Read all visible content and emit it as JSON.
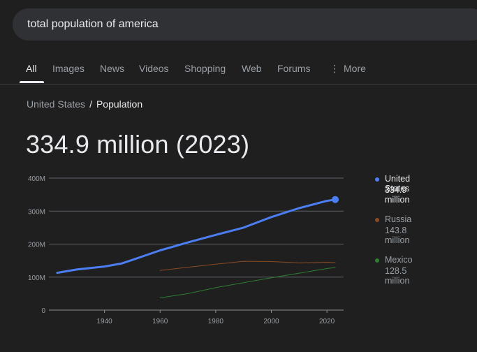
{
  "search": {
    "query": "total population of america"
  },
  "tabs": [
    "All",
    "Images",
    "News",
    "Videos",
    "Shopping",
    "Web",
    "Forums",
    "More"
  ],
  "more_icon_glyph": "⋮",
  "breadcrumb": {
    "parent": "United States",
    "separator": "/",
    "current": "Population"
  },
  "headline": "334.9 million (2023)",
  "legend": [
    {
      "name": "United States",
      "value": "334.9 million",
      "color": "#4c7ef3",
      "active": true
    },
    {
      "name": "Russia",
      "value": "143.8 million",
      "color": "#8a4b25",
      "active": false
    },
    {
      "name": "Mexico",
      "value": "128.5 million",
      "color": "#2e7d32",
      "active": false
    }
  ],
  "chart_data": {
    "type": "line",
    "y_ticks": [
      0,
      100,
      200,
      300,
      400
    ],
    "y_tick_labels": [
      "0",
      "100M",
      "200M",
      "300M",
      "400M"
    ],
    "x_ticks": [
      1940,
      1960,
      1980,
      2000,
      2020
    ],
    "xlim": [
      1920,
      2026
    ],
    "ylim": [
      0,
      400
    ],
    "grid": true,
    "series": [
      {
        "name": "United States",
        "color": "#4c7ef3",
        "x": [
          1923,
          1930,
          1940,
          1946,
          1950,
          1960,
          1970,
          1980,
          1990,
          2000,
          2010,
          2020,
          2023
        ],
        "y": [
          113,
          123,
          132,
          141,
          152,
          181,
          205,
          228,
          250,
          282,
          309,
          331,
          335
        ]
      },
      {
        "name": "Russia",
        "color": "#8a4b25",
        "x": [
          1960,
          1970,
          1980,
          1990,
          2000,
          2010,
          2020,
          2023
        ],
        "y": [
          120,
          130,
          139,
          148,
          147,
          143,
          145,
          144
        ]
      },
      {
        "name": "Mexico",
        "color": "#2e7d32",
        "x": [
          1960,
          1970,
          1980,
          1990,
          2000,
          2010,
          2020,
          2023
        ],
        "y": [
          37,
          50,
          68,
          83,
          98,
          112,
          126,
          129
        ]
      }
    ]
  }
}
